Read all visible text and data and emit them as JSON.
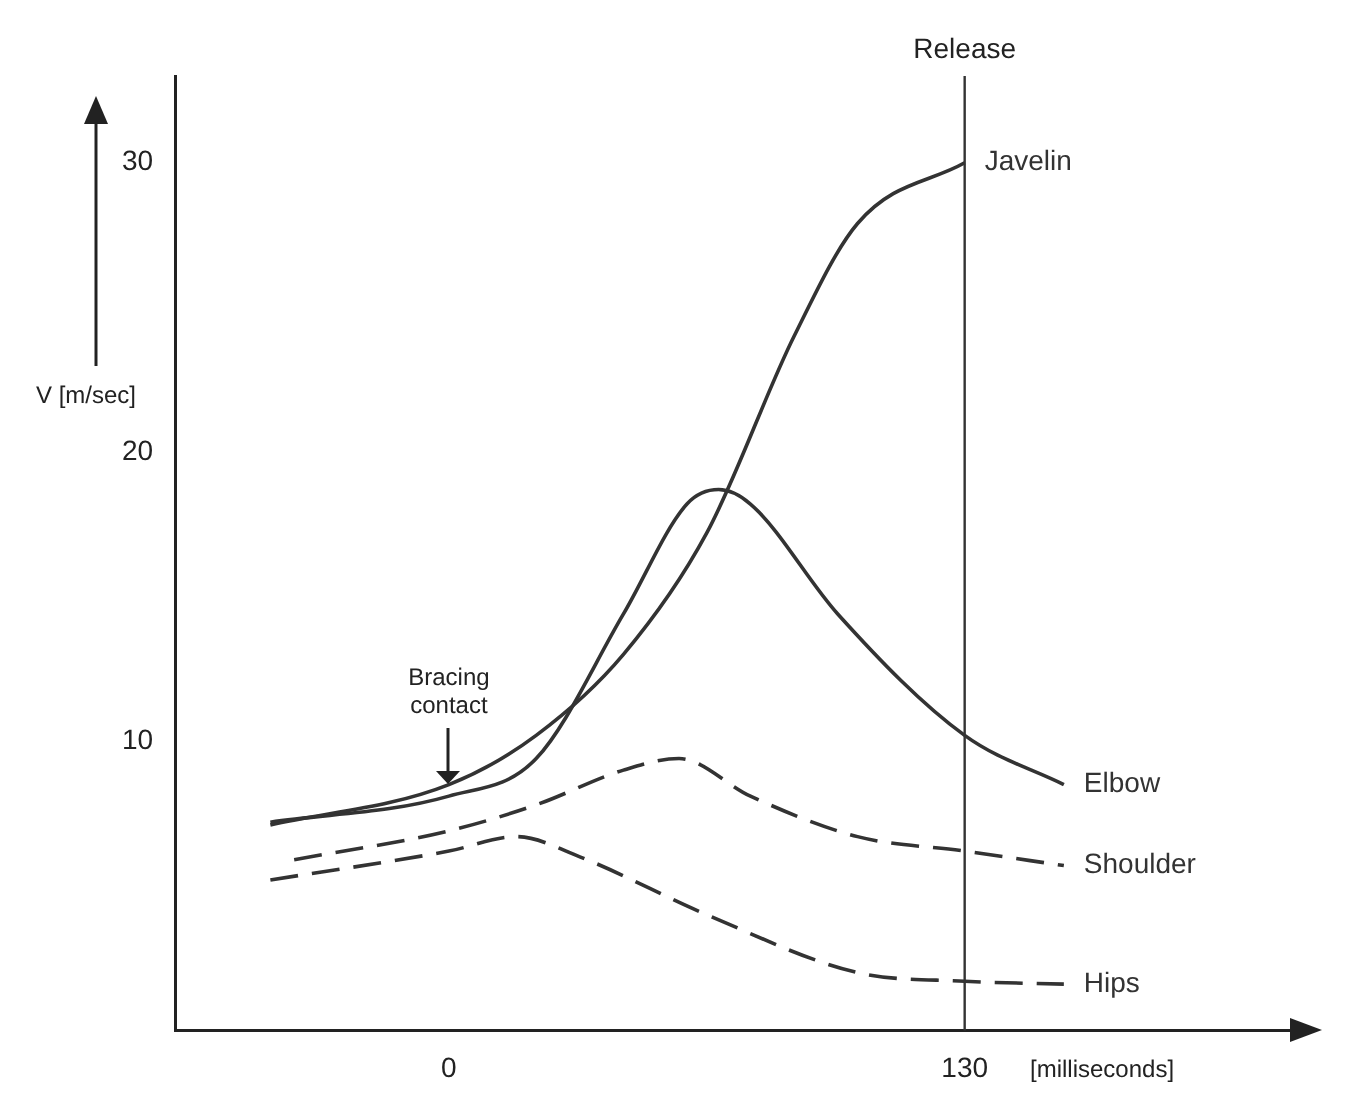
{
  "chart_data": {
    "type": "line",
    "xlabel": "[milliseconds]",
    "ylabel": "V [m/sec]",
    "xlim": [
      -69,
      212
    ],
    "ylim": [
      0,
      33
    ],
    "xticks": [
      0,
      130
    ],
    "yticks": [
      10,
      20,
      30
    ],
    "grid": false,
    "legend": false,
    "marker": "none",
    "series": [
      {
        "name": "Javelin",
        "color": "#333333",
        "line_style": "solid",
        "x": [
          -45,
          0,
          22,
          44,
          65,
          87,
          103,
          130
        ],
        "values": [
          7.1,
          8.5,
          10.2,
          13,
          17.2,
          24,
          27.9,
          30
        ]
      },
      {
        "name": "Elbow",
        "color": "#333333",
        "line_style": "solid",
        "x": [
          -45,
          0,
          22,
          44,
          60,
          68,
          76,
          98,
          130,
          155
        ],
        "values": [
          7.2,
          8.1,
          9.4,
          14.4,
          18.2,
          18.7,
          18.2,
          14.4,
          10.2,
          8.5
        ]
      },
      {
        "name": "Shoulder",
        "color": "#333333",
        "line_style": "dashed",
        "x": [
          -39,
          0,
          22,
          44,
          58,
          76,
          103,
          130,
          155
        ],
        "values": [
          5.9,
          6.9,
          7.8,
          9,
          9.4,
          8.1,
          6.7,
          6.2,
          5.7
        ]
      },
      {
        "name": "Hips",
        "color": "#333333",
        "line_style": "dashed",
        "x": [
          -45,
          0,
          17,
          33,
          65,
          103,
          130,
          155
        ],
        "values": [
          5.2,
          6.2,
          6.7,
          6,
          4,
          2,
          1.7,
          1.6
        ]
      }
    ],
    "ref_lines": [
      {
        "axis": "x",
        "value": 130,
        "label": "Release",
        "color": "#333333"
      }
    ],
    "annotations": [
      {
        "text": "Bracing contact",
        "x": 0,
        "y": 8.5
      }
    ]
  }
}
